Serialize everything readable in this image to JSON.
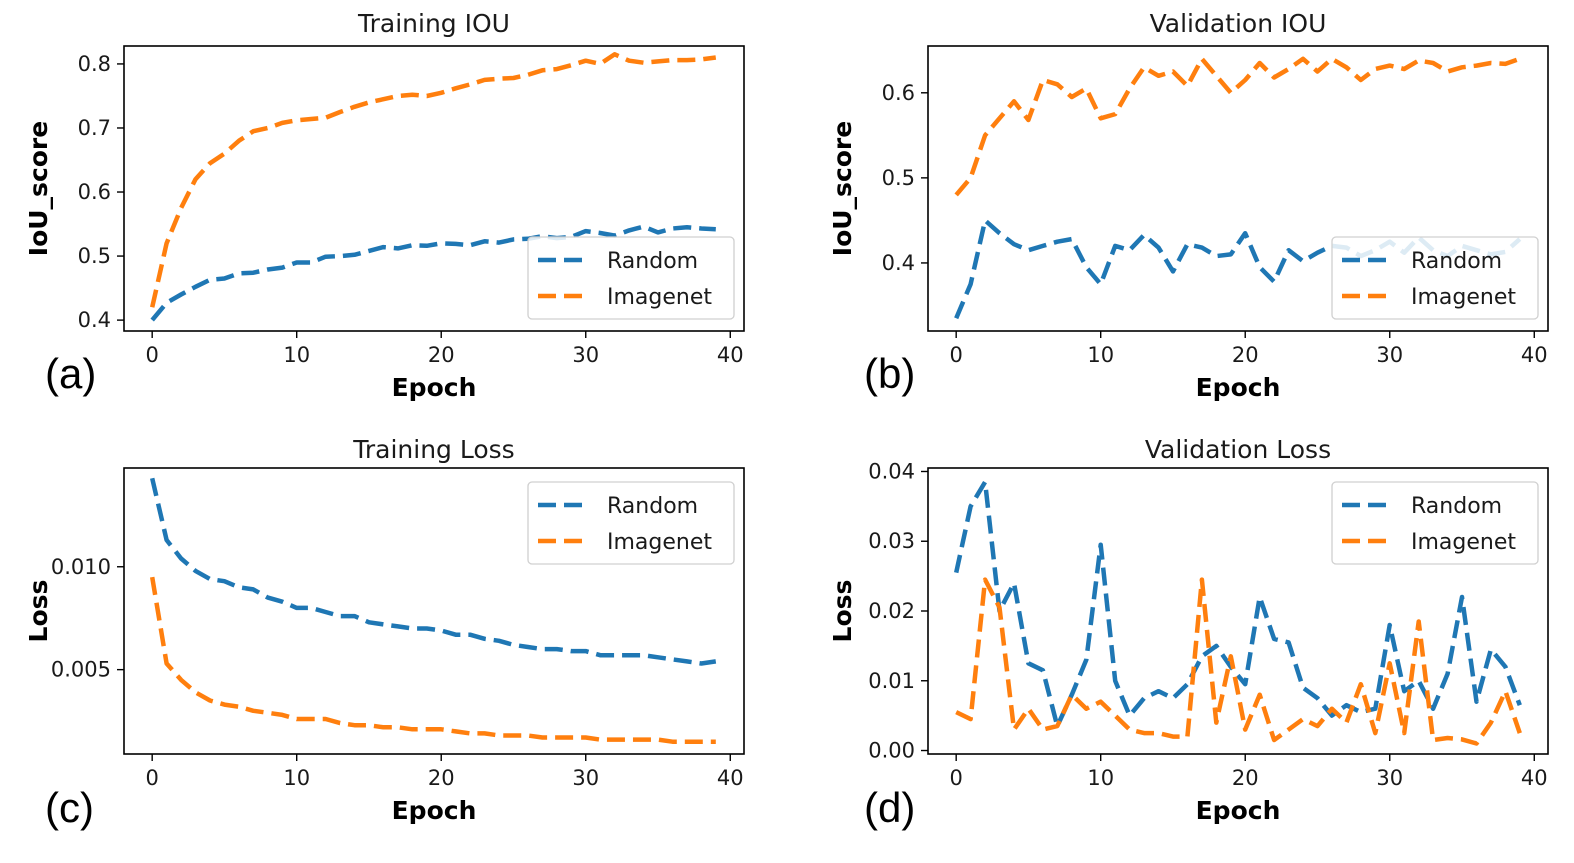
{
  "colors": {
    "Random": "#1f77b4",
    "Imagenet": "#ff7f0e"
  },
  "chart_data": [
    {
      "type": "line",
      "panel_label": "(a)",
      "title": "Training IOU",
      "xlabel": "Epoch",
      "ylabel": "IoU_score",
      "xlim": [
        -1.95,
        40.95
      ],
      "ylim": [
        0.383,
        0.828
      ],
      "xticks": [
        "0",
        "10",
        "20",
        "30",
        "40"
      ],
      "yticks": [
        "0.4",
        "0.5",
        "0.6",
        "0.7",
        "0.8"
      ],
      "legend": "lower-right",
      "grid": false,
      "x": [
        0,
        1,
        2,
        3,
        4,
        5,
        6,
        7,
        8,
        9,
        10,
        11,
        12,
        13,
        14,
        15,
        16,
        17,
        18,
        19,
        20,
        21,
        22,
        23,
        24,
        25,
        26,
        27,
        28,
        29,
        30,
        31,
        32,
        33,
        34,
        35,
        36,
        37,
        38,
        39
      ],
      "series": [
        {
          "name": "Random",
          "values": [
            0.4,
            0.427,
            0.44,
            0.452,
            0.463,
            0.465,
            0.473,
            0.474,
            0.479,
            0.482,
            0.49,
            0.49,
            0.499,
            0.5,
            0.502,
            0.508,
            0.514,
            0.512,
            0.517,
            0.516,
            0.52,
            0.519,
            0.517,
            0.523,
            0.521,
            0.526,
            0.527,
            0.531,
            0.528,
            0.53,
            0.539,
            0.536,
            0.532,
            0.54,
            0.546,
            0.537,
            0.543,
            0.545,
            0.543,
            0.542
          ]
        },
        {
          "name": "Imagenet",
          "values": [
            0.42,
            0.52,
            0.575,
            0.62,
            0.645,
            0.66,
            0.68,
            0.695,
            0.7,
            0.708,
            0.712,
            0.714,
            0.716,
            0.725,
            0.733,
            0.74,
            0.745,
            0.75,
            0.752,
            0.75,
            0.755,
            0.762,
            0.768,
            0.775,
            0.777,
            0.778,
            0.783,
            0.79,
            0.792,
            0.798,
            0.805,
            0.8,
            0.815,
            0.805,
            0.802,
            0.804,
            0.806,
            0.806,
            0.807,
            0.81
          ]
        }
      ]
    },
    {
      "type": "line",
      "panel_label": "(b)",
      "title": "Validation IOU",
      "xlabel": "Epoch",
      "ylabel": "IoU_score",
      "xlim": [
        -1.95,
        40.95
      ],
      "ylim": [
        0.32,
        0.655
      ],
      "xticks": [
        "0",
        "10",
        "20",
        "30",
        "40"
      ],
      "yticks": [
        "0.4",
        "0.5",
        "0.6"
      ],
      "legend": "lower-right",
      "grid": false,
      "x": [
        0,
        1,
        2,
        3,
        4,
        5,
        6,
        7,
        8,
        9,
        10,
        11,
        12,
        13,
        14,
        15,
        16,
        17,
        18,
        19,
        20,
        21,
        22,
        23,
        24,
        25,
        26,
        27,
        28,
        29,
        30,
        31,
        32,
        33,
        34,
        35,
        36,
        37,
        38,
        39
      ],
      "series": [
        {
          "name": "Random",
          "values": [
            0.335,
            0.375,
            0.45,
            0.435,
            0.422,
            0.415,
            0.42,
            0.425,
            0.428,
            0.395,
            0.375,
            0.42,
            0.415,
            0.433,
            0.418,
            0.39,
            0.422,
            0.418,
            0.408,
            0.41,
            0.435,
            0.395,
            0.378,
            0.415,
            0.402,
            0.412,
            0.42,
            0.418,
            0.408,
            0.415,
            0.425,
            0.412,
            0.43,
            0.415,
            0.408,
            0.42,
            0.415,
            0.41,
            0.413,
            0.428
          ]
        },
        {
          "name": "Imagenet",
          "values": [
            0.48,
            0.5,
            0.55,
            0.57,
            0.59,
            0.568,
            0.615,
            0.61,
            0.595,
            0.605,
            0.57,
            0.575,
            0.605,
            0.63,
            0.62,
            0.625,
            0.608,
            0.64,
            0.62,
            0.6,
            0.615,
            0.635,
            0.618,
            0.628,
            0.64,
            0.625,
            0.64,
            0.63,
            0.615,
            0.628,
            0.632,
            0.628,
            0.638,
            0.635,
            0.625,
            0.63,
            0.632,
            0.635,
            0.634,
            0.64
          ]
        }
      ]
    },
    {
      "type": "line",
      "panel_label": "(c)",
      "title": "Training Loss",
      "xlabel": "Epoch",
      "ylabel": "Loss",
      "xlim": [
        -1.95,
        40.95
      ],
      "ylim": [
        0.0009,
        0.0148
      ],
      "xticks": [
        "0",
        "10",
        "20",
        "30",
        "40"
      ],
      "yticks": [
        "0.005",
        "0.010"
      ],
      "legend": "upper-right",
      "grid": false,
      "x": [
        0,
        1,
        2,
        3,
        4,
        5,
        6,
        7,
        8,
        9,
        10,
        11,
        12,
        13,
        14,
        15,
        16,
        17,
        18,
        19,
        20,
        21,
        22,
        23,
        24,
        25,
        26,
        27,
        28,
        29,
        30,
        31,
        32,
        33,
        34,
        35,
        36,
        37,
        38,
        39
      ],
      "series": [
        {
          "name": "Random",
          "values": [
            0.0143,
            0.0113,
            0.0104,
            0.0098,
            0.0094,
            0.0093,
            0.009,
            0.0089,
            0.0085,
            0.0083,
            0.008,
            0.008,
            0.0078,
            0.0076,
            0.0076,
            0.0073,
            0.0072,
            0.0071,
            0.007,
            0.007,
            0.0069,
            0.0067,
            0.0067,
            0.0065,
            0.0064,
            0.0062,
            0.0061,
            0.006,
            0.006,
            0.0059,
            0.0059,
            0.0057,
            0.0057,
            0.0057,
            0.0057,
            0.0056,
            0.0055,
            0.0054,
            0.0053,
            0.0054
          ]
        },
        {
          "name": "Imagenet",
          "values": [
            0.0095,
            0.0053,
            0.0045,
            0.0039,
            0.0035,
            0.0033,
            0.0032,
            0.003,
            0.0029,
            0.0028,
            0.0026,
            0.0026,
            0.0026,
            0.0024,
            0.0023,
            0.0023,
            0.0022,
            0.0022,
            0.0021,
            0.0021,
            0.0021,
            0.002,
            0.0019,
            0.0019,
            0.0018,
            0.0018,
            0.0018,
            0.0017,
            0.0017,
            0.0017,
            0.0017,
            0.0016,
            0.0016,
            0.0016,
            0.0016,
            0.0016,
            0.0015,
            0.0015,
            0.0015,
            0.0015
          ]
        }
      ]
    },
    {
      "type": "line",
      "panel_label": "(d)",
      "title": "Validation Loss",
      "xlabel": "Epoch",
      "ylabel": "Loss",
      "xlim": [
        -1.95,
        40.95
      ],
      "ylim": [
        -0.0005,
        0.0405
      ],
      "xticks": [
        "0",
        "10",
        "20",
        "30",
        "40"
      ],
      "yticks": [
        "0.00",
        "0.01",
        "0.02",
        "0.03",
        "0.04"
      ],
      "legend": "upper-right",
      "grid": false,
      "x": [
        0,
        1,
        2,
        3,
        4,
        5,
        6,
        7,
        8,
        9,
        10,
        11,
        12,
        13,
        14,
        15,
        16,
        17,
        18,
        19,
        20,
        21,
        22,
        23,
        24,
        25,
        26,
        27,
        28,
        29,
        30,
        31,
        32,
        33,
        34,
        35,
        36,
        37,
        38,
        39
      ],
      "series": [
        {
          "name": "Random",
          "values": [
            0.0255,
            0.035,
            0.0385,
            0.02,
            0.024,
            0.0125,
            0.0115,
            0.0035,
            0.008,
            0.013,
            0.0295,
            0.01,
            0.005,
            0.0075,
            0.0085,
            0.0075,
            0.0095,
            0.0135,
            0.015,
            0.012,
            0.0095,
            0.022,
            0.016,
            0.0155,
            0.009,
            0.0075,
            0.005,
            0.0065,
            0.0055,
            0.006,
            0.018,
            0.0085,
            0.01,
            0.006,
            0.011,
            0.022,
            0.007,
            0.0145,
            0.012,
            0.0065
          ]
        },
        {
          "name": "Imagenet",
          "values": [
            0.0055,
            0.0045,
            0.0245,
            0.0205,
            0.003,
            0.006,
            0.003,
            0.0035,
            0.008,
            0.006,
            0.007,
            0.005,
            0.003,
            0.0025,
            0.0025,
            0.002,
            0.002,
            0.0245,
            0.004,
            0.0135,
            0.003,
            0.008,
            0.0015,
            0.003,
            0.0045,
            0.0035,
            0.006,
            0.004,
            0.0095,
            0.0025,
            0.0125,
            0.0025,
            0.0185,
            0.0015,
            0.0018,
            0.0016,
            0.001,
            0.004,
            0.0085,
            0.0025
          ]
        }
      ]
    }
  ]
}
